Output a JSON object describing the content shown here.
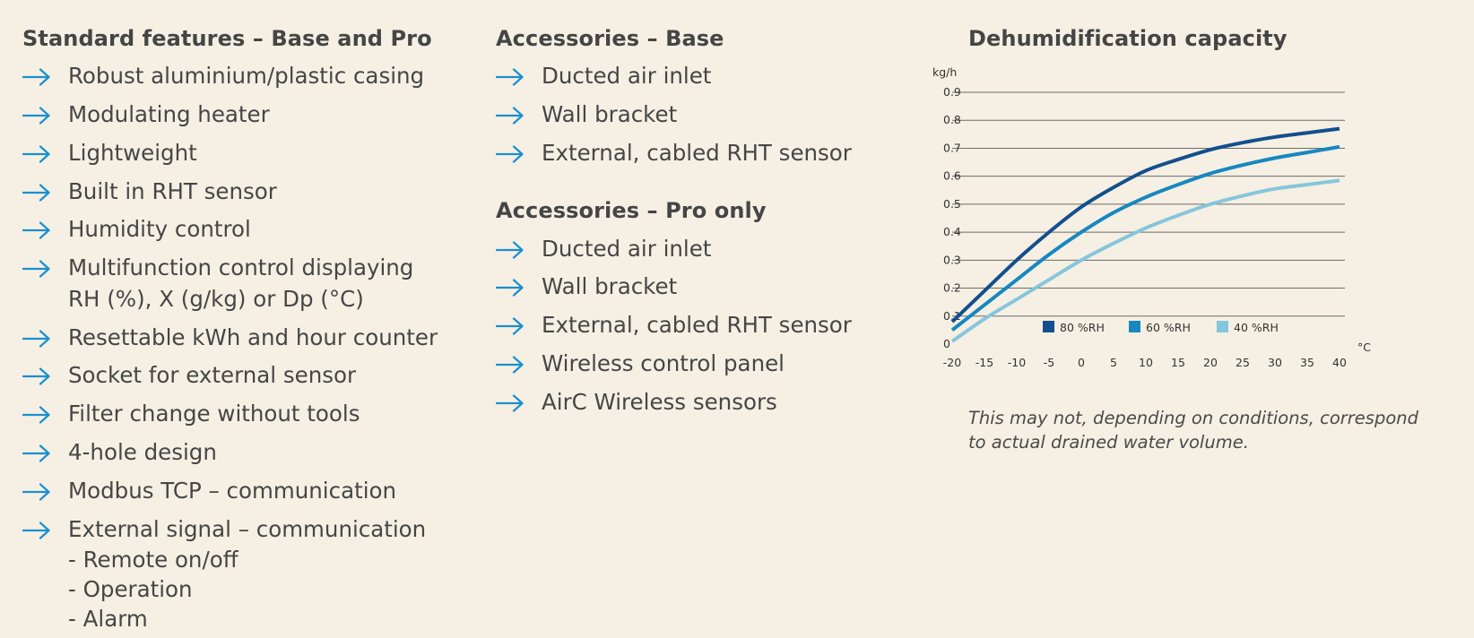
{
  "standard": {
    "title": "Standard features – Base and Pro",
    "items": [
      {
        "lines": [
          "Robust aluminium/plastic casing"
        ]
      },
      {
        "lines": [
          "Modulating heater"
        ]
      },
      {
        "lines": [
          "Lightweight"
        ]
      },
      {
        "lines": [
          "Built in RHT sensor"
        ]
      },
      {
        "lines": [
          "Humidity control"
        ]
      },
      {
        "lines": [
          "Multifunction control displaying",
          "RH (%), X (g/kg) or Dp (°C)"
        ]
      },
      {
        "lines": [
          "Resettable kWh and hour counter"
        ]
      },
      {
        "lines": [
          "Socket for external sensor"
        ]
      },
      {
        "lines": [
          "Filter change without tools"
        ]
      },
      {
        "lines": [
          "4-hole design"
        ]
      },
      {
        "lines": [
          "Modbus TCP – communication"
        ]
      },
      {
        "lines": [
          "External signal – communication",
          "- Remote on/off",
          "- Operation",
          "- Alarm"
        ]
      }
    ]
  },
  "accessories_base": {
    "title": "Accessories – Base",
    "items": [
      "Ducted air inlet",
      "Wall bracket",
      "External, cabled RHT sensor"
    ]
  },
  "accessories_pro": {
    "title": "Accessories – Pro only",
    "items": [
      "Ducted air inlet",
      "Wall bracket",
      "External, cabled RHT sensor",
      "Wireless control panel",
      "AirC Wireless sensors"
    ]
  },
  "chart_title": "Dehumidification capacity",
  "note": "This may not, depending on conditions, correspond to actual drained water volume.",
  "colors": {
    "arrow": "#1a8fd0",
    "series_80": "#134f8e",
    "series_60": "#1787c0",
    "series_40": "#86c6dc",
    "gridline": "#6a6a6a"
  },
  "chart_data": {
    "type": "line",
    "title": "Dehumidification capacity",
    "xlabel": "°C",
    "ylabel": "kg/h",
    "xlim": [
      -20,
      40
    ],
    "ylim": [
      0,
      0.9
    ],
    "x_ticks": [
      "-20",
      "-15",
      "-10",
      "-5",
      "0",
      "5",
      "10",
      "15",
      "20",
      "25",
      "30",
      "35",
      "40"
    ],
    "y_ticks": [
      "0",
      "0.1",
      "0.2",
      "0.3",
      "0.4",
      "0.5",
      "0.6",
      "0.7",
      "0.8",
      "0.9"
    ],
    "grid": "horizontal",
    "legend_position": "bottom-right",
    "x": [
      -20,
      -15,
      -10,
      -5,
      0,
      5,
      10,
      15,
      20,
      25,
      30,
      35,
      40
    ],
    "series": [
      {
        "name": "80 %RH",
        "values": [
          0.08,
          0.19,
          0.3,
          0.4,
          0.49,
          0.56,
          0.62,
          0.66,
          0.695,
          0.72,
          0.74,
          0.755,
          0.77
        ]
      },
      {
        "name": "60 %RH",
        "values": [
          0.05,
          0.14,
          0.23,
          0.32,
          0.4,
          0.47,
          0.525,
          0.57,
          0.61,
          0.64,
          0.665,
          0.685,
          0.705
        ]
      },
      {
        "name": "40 %RH",
        "values": [
          0.01,
          0.09,
          0.16,
          0.23,
          0.3,
          0.36,
          0.415,
          0.46,
          0.5,
          0.53,
          0.555,
          0.57,
          0.585
        ]
      }
    ]
  }
}
